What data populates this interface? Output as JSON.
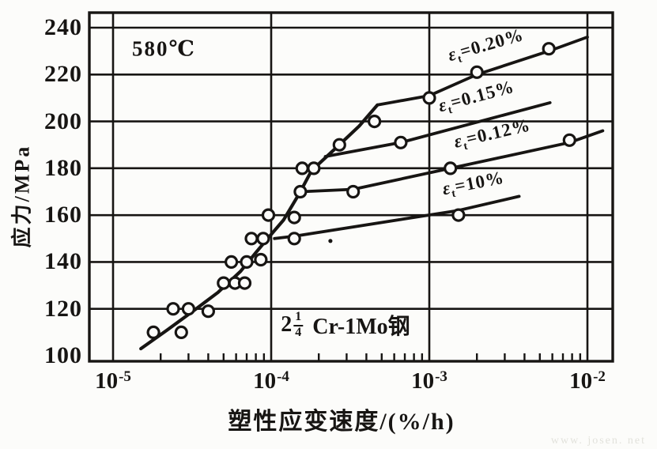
{
  "watermark": "www. josen. net",
  "chart_data": {
    "type": "line",
    "x_scale": "log",
    "xlabel": "塑性应变速度/(%/h)",
    "ylabel": "应力/MPa",
    "xlim": [
      7e-06,
      0.0145
    ],
    "ylim": [
      98,
      246
    ],
    "grid": "on",
    "legend": "none",
    "y_ticks": [
      240,
      220,
      200,
      180,
      160,
      140,
      120,
      100
    ],
    "y_gridlines": [
      120,
      140,
      160,
      180,
      200,
      220,
      240
    ],
    "x_major_ticks": [
      {
        "label_base": "10",
        "label_exp": "-5",
        "value": 1e-05
      },
      {
        "label_base": "10",
        "label_exp": "-4",
        "value": 0.0001
      },
      {
        "label_base": "10",
        "label_exp": "-3",
        "value": 0.001
      },
      {
        "label_base": "10",
        "label_exp": "-2",
        "value": 0.01
      }
    ],
    "temperature_label": {
      "text": "580℃",
      "x": 2.1e-05,
      "y": 231
    },
    "material_label": {
      "pre": "2",
      "frac_num": "1",
      "frac_den": "4",
      "post": "Cr-1Mo钢",
      "full": "2 1/4 Cr-1Mo钢",
      "x": 0.000295,
      "y": 113
    },
    "stray_mark": {
      "x": 0.000237,
      "y": 149
    },
    "series": [
      {
        "id": "main-trunk",
        "label": null,
        "line": [
          [
            1.5e-05,
            103
          ],
          [
            2.2e-05,
            111
          ],
          [
            3.2e-05,
            119
          ],
          [
            4.6e-05,
            127
          ],
          [
            6.4e-05,
            136
          ],
          [
            8e-05,
            144
          ],
          [
            9.5e-05,
            150
          ],
          [
            0.00012,
            158
          ],
          [
            0.00015,
            169
          ],
          [
            0.00018,
            179
          ],
          [
            0.00026,
            189
          ],
          [
            0.00036,
            198
          ],
          [
            0.00047,
            207
          ]
        ],
        "points": [
          [
            1.8e-05,
            110
          ],
          [
            2.7e-05,
            110
          ],
          [
            2.4e-05,
            120
          ],
          [
            3e-05,
            120
          ],
          [
            4e-05,
            119
          ],
          [
            5e-05,
            131
          ],
          [
            5.9e-05,
            131
          ],
          [
            6.8e-05,
            131
          ],
          [
            5.6e-05,
            140
          ],
          [
            7e-05,
            140
          ],
          [
            8.6e-05,
            141
          ],
          [
            7.5e-05,
            150
          ],
          [
            8.9e-05,
            150
          ],
          [
            9.6e-05,
            160
          ],
          [
            0.00014,
            159
          ],
          [
            0.000153,
            170
          ],
          [
            0.000157,
            180
          ],
          [
            0.000186,
            180
          ],
          [
            0.00027,
            190
          ],
          [
            0.00045,
            200
          ]
        ]
      },
      {
        "id": "strain-0.20",
        "label": {
          "pre": "ε",
          "sub": "t",
          "post": "=0.20%"
        },
        "anchor": {
          "x": 0.0023,
          "y": 232,
          "rot": -16
        },
        "line": [
          [
            0.00047,
            207
          ],
          [
            0.001,
            211
          ],
          [
            0.002,
            220
          ],
          [
            0.0057,
            230
          ],
          [
            0.01,
            236
          ]
        ],
        "points": [
          [
            0.001,
            210
          ],
          [
            0.002,
            221
          ],
          [
            0.0057,
            231
          ]
        ]
      },
      {
        "id": "strain-0.15",
        "label": {
          "pre": "ε",
          "sub": "t",
          "post": "=0.15%"
        },
        "anchor": {
          "x": 0.002,
          "y": 210,
          "rot": -15
        },
        "line": [
          [
            0.00022,
            185
          ],
          [
            0.00066,
            191
          ],
          [
            0.0058,
            208
          ]
        ],
        "points": [
          [
            0.00066,
            191
          ]
        ]
      },
      {
        "id": "strain-0.12",
        "label": {
          "pre": "ε",
          "sub": "t",
          "post": "=0.12%"
        },
        "anchor": {
          "x": 0.0025,
          "y": 194,
          "rot": -13
        },
        "line": [
          [
            0.000155,
            170
          ],
          [
            0.00033,
            171
          ],
          [
            0.00136,
            180
          ],
          [
            0.0077,
            191
          ],
          [
            0.0125,
            196
          ]
        ],
        "points": [
          [
            0.00033,
            170
          ],
          [
            0.00136,
            180
          ],
          [
            0.0077,
            192
          ]
        ]
      },
      {
        "id": "strain-10",
        "label": {
          "pre": "ε",
          "sub": "t",
          "post": "=10%"
        },
        "anchor": {
          "x": 0.0019,
          "y": 173,
          "rot": -11
        },
        "line": [
          [
            0.000105,
            150
          ],
          [
            0.00014,
            151
          ],
          [
            0.00153,
            162
          ],
          [
            0.0037,
            168
          ]
        ],
        "points": [
          [
            0.00014,
            150
          ],
          [
            0.00153,
            160
          ]
        ]
      }
    ]
  }
}
